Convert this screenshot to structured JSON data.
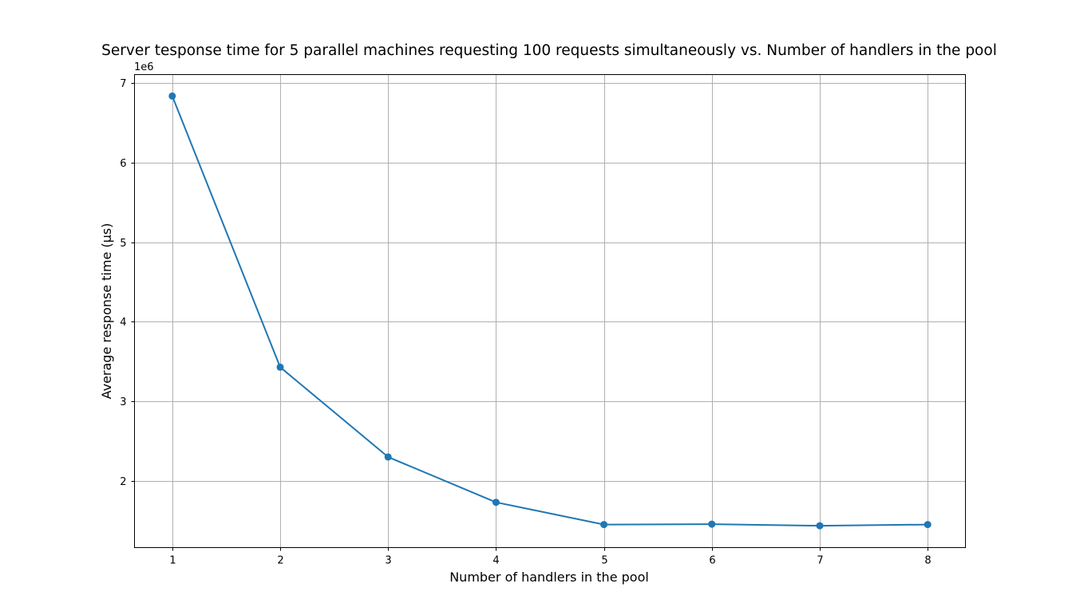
{
  "chart_data": {
    "type": "line",
    "title": "Server tesponse time for 5 parallel machines requesting 100 requests simultaneously vs. Number of handlers in the pool",
    "xlabel": "Number of handlers in the pool",
    "ylabel": "Average response time (µs)",
    "y_offset_label": "1e6",
    "x": [
      1,
      2,
      3,
      4,
      5,
      6,
      7,
      8
    ],
    "series": [
      {
        "values": [
          6840000,
          3430000,
          2300000,
          1730000,
          1450000,
          1455000,
          1435000,
          1450000
        ],
        "color": "#1f77b4"
      }
    ],
    "xticks": [
      1,
      2,
      3,
      4,
      5,
      6,
      7,
      8
    ],
    "xtick_labels": [
      "1",
      "2",
      "3",
      "4",
      "5",
      "6",
      "7",
      "8"
    ],
    "yticks": [
      2000000,
      3000000,
      4000000,
      5000000,
      6000000,
      7000000
    ],
    "ytick_labels": [
      "2",
      "3",
      "4",
      "5",
      "6",
      "7"
    ],
    "xlim": [
      0.65,
      8.35
    ],
    "ylim": [
      1160000,
      7110000
    ],
    "grid": true,
    "marker": "circle"
  }
}
